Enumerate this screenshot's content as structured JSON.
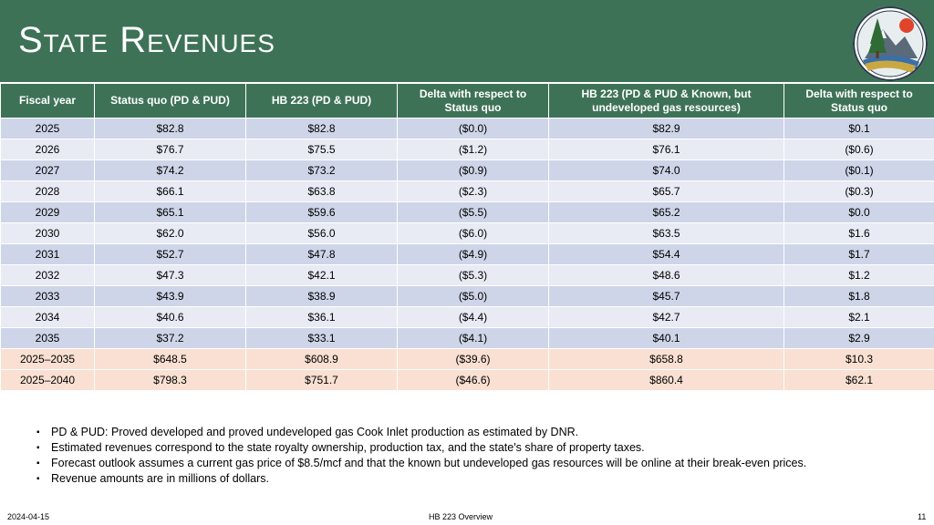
{
  "slide": {
    "title": "State Revenues",
    "logo_icon": "alaska-dnr-seal",
    "header_color": "#3e7257"
  },
  "table": {
    "columns": [
      "Fiscal year",
      "Status quo (PD & PUD)",
      "HB 223 (PD & PUD)",
      "Delta with respect to Status quo",
      "HB 223 (PD & PUD & Known, but undeveloped gas resources)",
      "Delta with respect to Status quo"
    ],
    "rows": [
      [
        "2025",
        "$82.8",
        "$82.8",
        "($0.0)",
        "$82.9",
        "$0.1"
      ],
      [
        "2026",
        "$76.7",
        "$75.5",
        "($1.2)",
        "$76.1",
        "($0.6)"
      ],
      [
        "2027",
        "$74.2",
        "$73.2",
        "($0.9)",
        "$74.0",
        "($0.1)"
      ],
      [
        "2028",
        "$66.1",
        "$63.8",
        "($2.3)",
        "$65.7",
        "($0.3)"
      ],
      [
        "2029",
        "$65.1",
        "$59.6",
        "($5.5)",
        "$65.2",
        "$0.0"
      ],
      [
        "2030",
        "$62.0",
        "$56.0",
        "($6.0)",
        "$63.5",
        "$1.6"
      ],
      [
        "2031",
        "$52.7",
        "$47.8",
        "($4.9)",
        "$54.4",
        "$1.7"
      ],
      [
        "2032",
        "$47.3",
        "$42.1",
        "($5.3)",
        "$48.6",
        "$1.2"
      ],
      [
        "2033",
        "$43.9",
        "$38.9",
        "($5.0)",
        "$45.7",
        "$1.8"
      ],
      [
        "2034",
        "$40.6",
        "$36.1",
        "($4.4)",
        "$42.7",
        "$2.1"
      ],
      [
        "2035",
        "$37.2",
        "$33.1",
        "($4.1)",
        "$40.1",
        "$2.9"
      ]
    ],
    "totals": [
      [
        "2025–2035",
        "$648.5",
        "$608.9",
        "($39.6)",
        "$658.8",
        "$10.3"
      ],
      [
        "2025–2040",
        "$798.3",
        "$751.7",
        "($46.6)",
        "$860.4",
        "$62.1"
      ]
    ]
  },
  "notes": [
    "PD & PUD: Proved developed and proved undeveloped gas Cook Inlet production as estimated by DNR.",
    "Estimated revenues correspond to the state royalty ownership, production tax, and the state's share of property taxes.",
    "Forecast outlook assumes a current gas price of $8.5/mcf and that the known but undeveloped gas resources will be online at their break-even prices.",
    "Revenue amounts are in millions of dollars."
  ],
  "footer": {
    "date": "2024-04-15",
    "center": "HB 223 Overview",
    "page": "11"
  }
}
